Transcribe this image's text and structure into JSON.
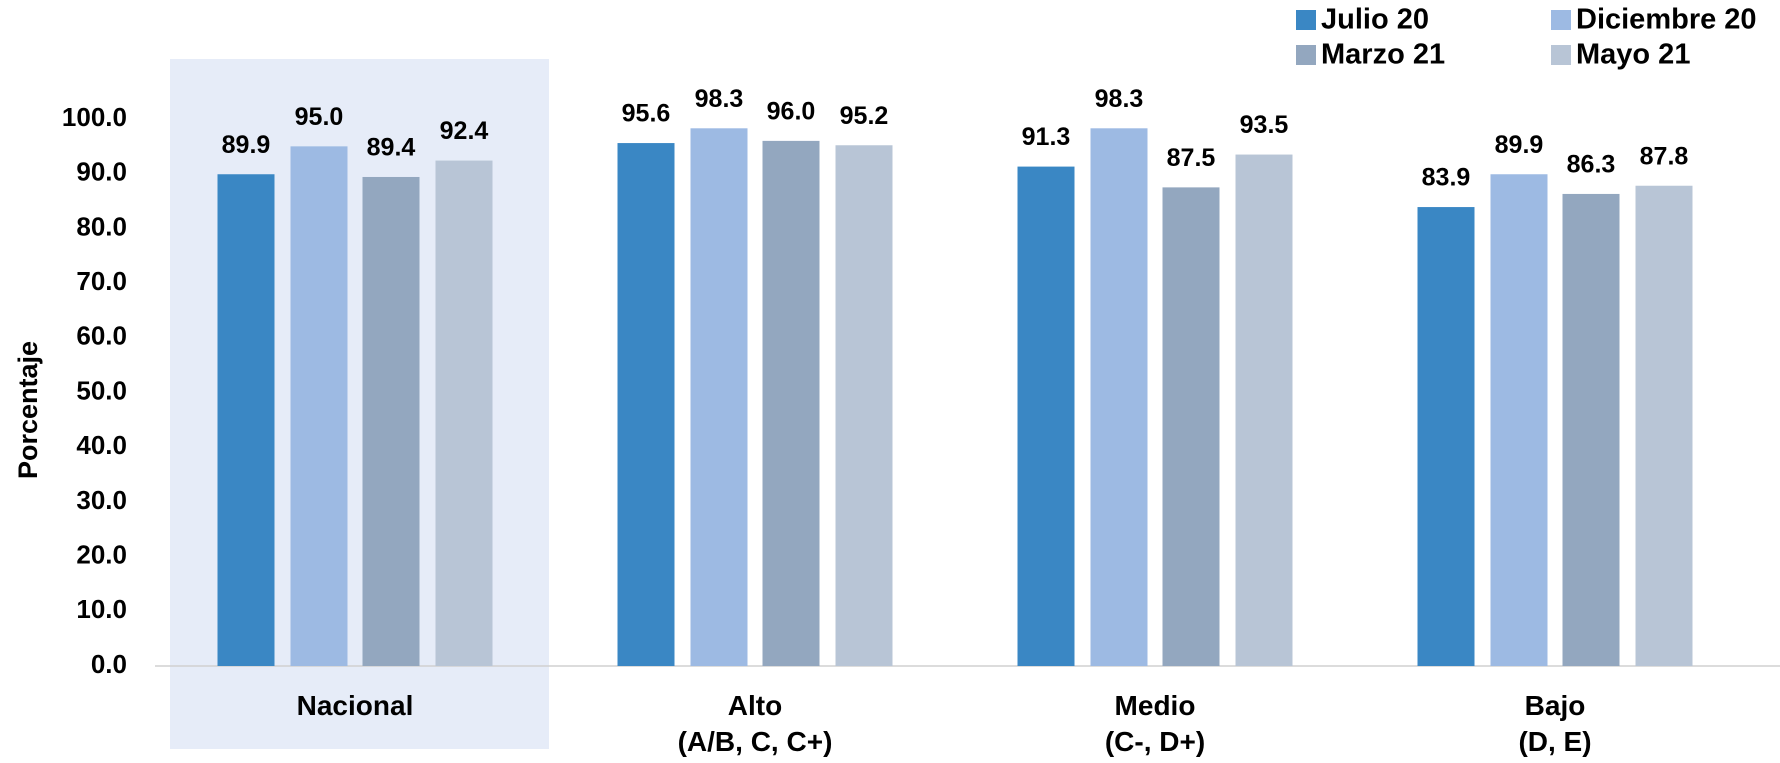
{
  "chart_data": {
    "type": "bar",
    "y_label": "Porcentaje",
    "categories": [
      "Nacional",
      "Alto\n(A/B, C, C+)",
      "Medio\n(C-, D+)",
      "Bajo\n(D, E)"
    ],
    "series": [
      {
        "name": "Julio 20",
        "color": "#3a87c4",
        "values": [
          89.9,
          95.6,
          91.3,
          83.9
        ],
        "value_labels": [
          "89.9",
          "95.6",
          "91.3",
          "83.9"
        ]
      },
      {
        "name": "Diciembre 20",
        "color": "#9dbae3",
        "values": [
          95.0,
          98.3,
          98.3,
          89.9
        ],
        "value_labels": [
          "95.0",
          "98.3",
          "98.3",
          "89.9"
        ]
      },
      {
        "name": "Marzo 21",
        "color": "#93a7bf",
        "values": [
          89.4,
          96.0,
          87.5,
          86.3
        ],
        "value_labels": [
          "89.4",
          "96.0",
          "87.5",
          "86.3"
        ]
      },
      {
        "name": "Mayo 21",
        "color": "#b8c5d6",
        "values": [
          92.4,
          95.2,
          93.5,
          87.8
        ],
        "value_labels": [
          "92.4",
          "95.2",
          "93.5",
          "87.8"
        ]
      }
    ],
    "ylim": [
      0,
      100
    ],
    "yticks": [
      {
        "value": 0,
        "label": "0.0"
      },
      {
        "value": 10,
        "label": "10.0"
      },
      {
        "value": 20,
        "label": "20.0"
      },
      {
        "value": 30,
        "label": "30.0"
      },
      {
        "value": 40,
        "label": "40.0"
      },
      {
        "value": 50,
        "label": "50.0"
      },
      {
        "value": 60,
        "label": "60.0"
      },
      {
        "value": 70,
        "label": "70.0"
      },
      {
        "value": 80,
        "label": "80.0"
      },
      {
        "value": 90,
        "label": "90.0"
      },
      {
        "value": 100,
        "label": "100.0"
      }
    ],
    "grid": false,
    "legend": "top-right"
  }
}
